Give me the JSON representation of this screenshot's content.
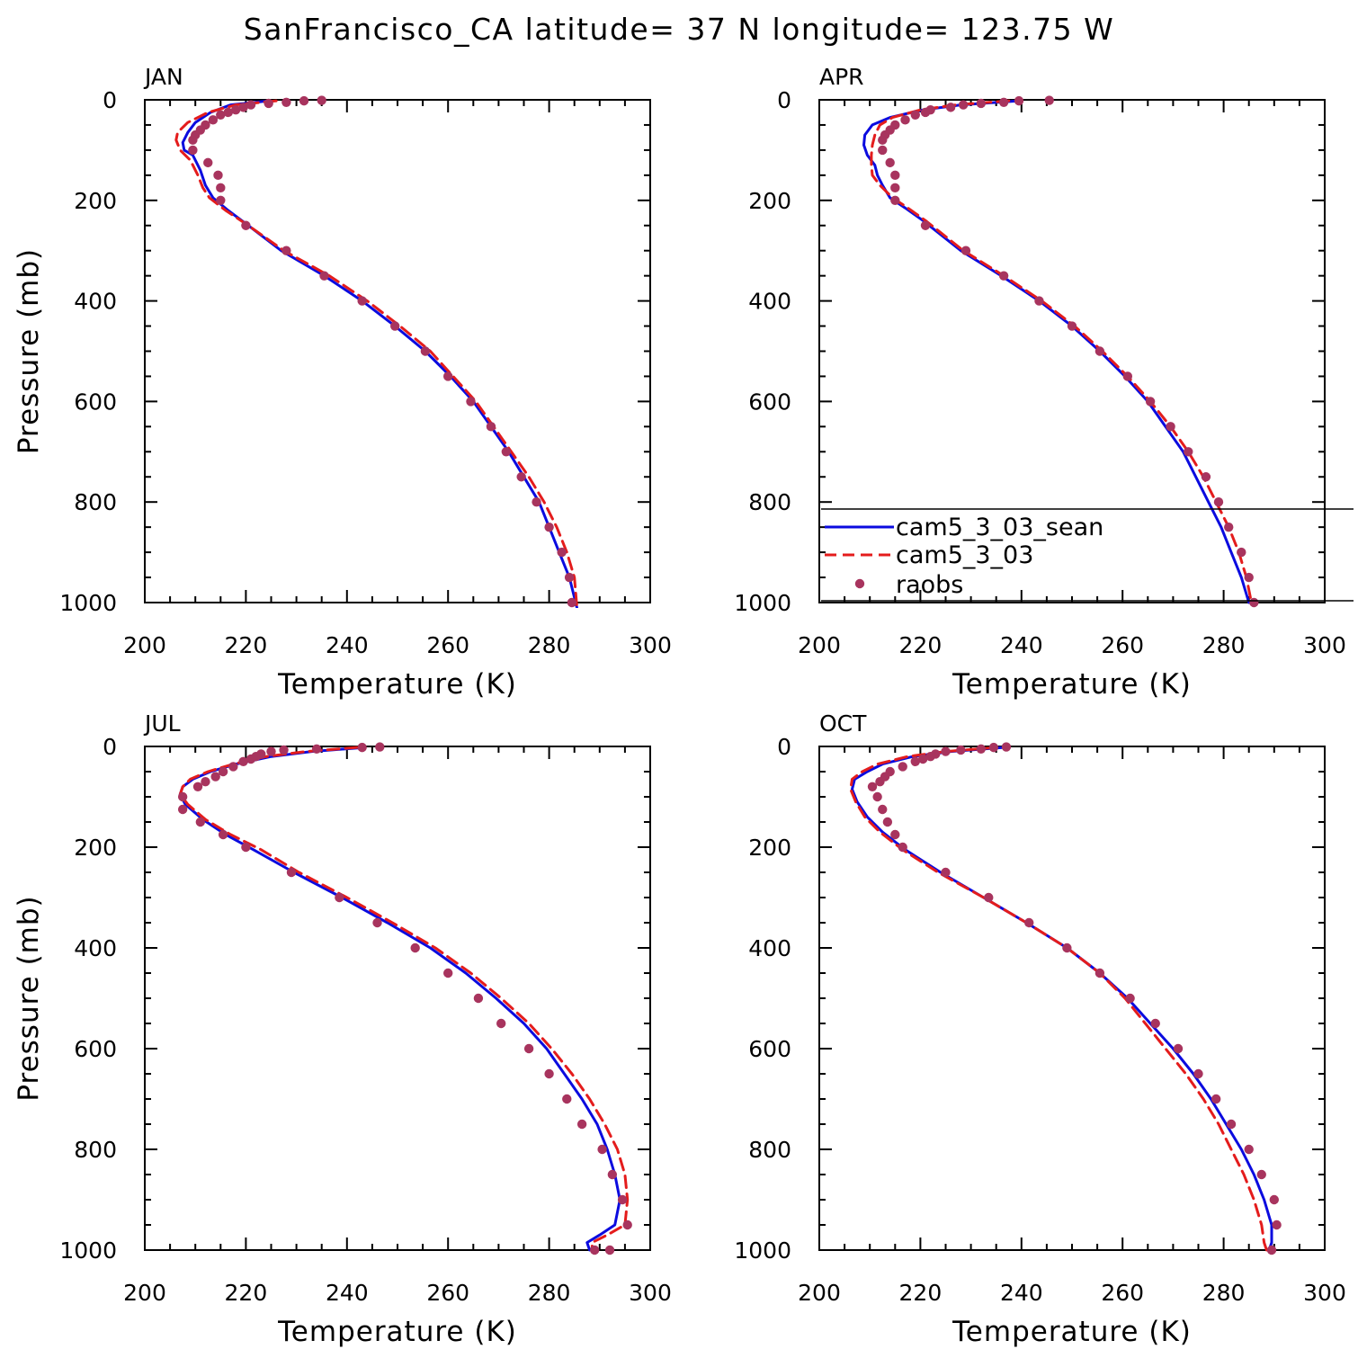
{
  "chart_data": {
    "type": "line",
    "title": "SanFrancisco_CA  latitude= 37 N longitude= 123.75 W",
    "colors": {
      "cam5_3_03_sean": "#0b0bdf",
      "cam5_3_03": "#e41c1c",
      "raobs": "#a8345e"
    },
    "legend": {
      "placement": "inside APR panel, bottom",
      "entries": [
        "cam5_3_03_sean",
        "cam5_3_03",
        "raobs"
      ]
    },
    "panels": [
      {
        "label": "JAN",
        "xlabel": "Temperature (K)",
        "ylabel": "Pressure (mb)",
        "xlim": [
          200,
          300
        ],
        "ylim": [
          1000,
          0
        ],
        "xticks": [
          "200",
          "220",
          "240",
          "260",
          "280",
          "300"
        ],
        "yticks": [
          "0",
          "200",
          "400",
          "600",
          "800",
          "1000"
        ],
        "series": [
          {
            "name": "cam5_3_03_sean",
            "style": "solid",
            "temperature": [
              224.5,
              217,
              213,
              210,
              208.5,
              207.5,
              207.8,
              209.5,
              211,
              212,
              213.5,
              216.5,
              220.5,
              227,
              235.5,
              243,
              249.5,
              255.5,
              260.5,
              265,
              268.5,
              272,
              275,
              278,
              280,
              282,
              284,
              285.5
            ],
            "pressure": [
              2,
              10,
              25,
              45,
              65,
              85,
              100,
              110,
              140,
              170,
              195,
              220,
              250,
              300,
              350,
              400,
              450,
              500,
              550,
              600,
              650,
              700,
              750,
              800,
              850,
              900,
              950,
              1010
            ]
          },
          {
            "name": "cam5_3_03",
            "style": "dashed",
            "temperature": [
              226,
              218,
              212.5,
              208.5,
              206.5,
              206.2,
              207,
              209,
              210.5,
              211.5,
              212.8,
              216,
              220.5,
              227.5,
              236.5,
              244,
              250.5,
              256.5,
              261,
              265.5,
              269,
              272.5,
              276,
              279,
              281.5,
              283.5,
              285,
              285.5
            ],
            "pressure": [
              2,
              10,
              25,
              45,
              65,
              80,
              100,
              120,
              150,
              175,
              195,
              220,
              250,
              300,
              350,
              400,
              450,
              500,
              550,
              600,
              650,
              700,
              750,
              800,
              850,
              900,
              950,
              1010
            ]
          },
          {
            "name": "raobs",
            "style": "dots",
            "temperature": [
              235,
              231.5,
              228,
              224.5,
              221,
              219.5,
              218,
              216.5,
              215,
              213.5,
              212,
              211,
              210,
              209.5,
              209.5,
              212.5,
              214.5,
              215,
              215,
              220,
              228,
              235.5,
              243,
              249.5,
              255.5,
              260,
              264.5,
              268.5,
              271.5,
              274.5,
              277.5,
              280,
              282.5,
              284,
              284.5
            ],
            "pressure": [
              1,
              2,
              5,
              7,
              10,
              15,
              20,
              25,
              30,
              40,
              50,
              60,
              70,
              80,
              100,
              125,
              150,
              175,
              200,
              250,
              300,
              350,
              400,
              450,
              500,
              550,
              600,
              650,
              700,
              750,
              800,
              850,
              900,
              950,
              1000
            ]
          }
        ]
      },
      {
        "label": "APR",
        "xlabel": "Temperature (K)",
        "ylabel": "",
        "xlim": [
          200,
          300
        ],
        "ylim": [
          1000,
          0
        ],
        "xticks": [
          "200",
          "220",
          "240",
          "260",
          "280",
          "300"
        ],
        "yticks": [
          "0",
          "200",
          "400",
          "600",
          "800",
          "1000"
        ],
        "series": [
          {
            "name": "cam5_3_03_sean",
            "style": "solid",
            "temperature": [
              239.5,
              228,
              220.5,
              214,
              210.5,
              209,
              208.8,
              209.5,
              211,
              211.5,
              212.5,
              214,
              217,
              220.5,
              228,
              236,
              243.5,
              250,
              255.5,
              260.5,
              265,
              268.5,
              272,
              274.5,
              277,
              279.5,
              281.5,
              283.5,
              285
            ],
            "pressure": [
              2,
              10,
              20,
              35,
              50,
              70,
              90,
              110,
              130,
              150,
              170,
              195,
              215,
              240,
              300,
              350,
              400,
              450,
              500,
              550,
              600,
              650,
              700,
              750,
              800,
              850,
              900,
              950,
              1000
            ]
          },
          {
            "name": "cam5_3_03",
            "style": "dashed",
            "temperature": [
              237.5,
              227,
              220,
              214.5,
              212,
              211,
              210.5,
              210.3,
              210.3,
              210.5,
              212,
              214.5,
              217.5,
              221,
              228.5,
              236.5,
              244,
              250.5,
              256,
              261,
              265.5,
              269.5,
              273,
              276,
              278.5,
              281,
              283,
              284.5,
              285.5
            ],
            "pressure": [
              2,
              10,
              20,
              35,
              50,
              70,
              90,
              110,
              130,
              150,
              170,
              195,
              215,
              240,
              300,
              350,
              400,
              450,
              500,
              550,
              600,
              650,
              700,
              750,
              800,
              850,
              900,
              950,
              1000
            ]
          },
          {
            "name": "raobs",
            "style": "dots",
            "temperature": [
              245.5,
              239.5,
              236.5,
              232,
              228.5,
              226,
              222,
              221,
              219,
              217,
              215,
              214,
              213,
              212.5,
              212.5,
              214,
              215,
              215,
              215,
              221,
              229,
              236.5,
              243.5,
              250,
              255.5,
              261,
              265.5,
              269.5,
              273,
              276.5,
              279,
              281,
              283.5,
              285,
              286
            ],
            "pressure": [
              1,
              2,
              5,
              7,
              10,
              15,
              20,
              25,
              30,
              40,
              50,
              60,
              70,
              80,
              100,
              125,
              150,
              175,
              200,
              250,
              300,
              350,
              400,
              450,
              500,
              550,
              600,
              650,
              700,
              750,
              800,
              850,
              900,
              950,
              1000
            ]
          }
        ]
      },
      {
        "label": "JUL",
        "xlabel": "Temperature (K)",
        "ylabel": "Pressure (mb)",
        "xlim": [
          200,
          300
        ],
        "ylim": [
          1000,
          0
        ],
        "xticks": [
          "200",
          "220",
          "240",
          "260",
          "280",
          "300"
        ],
        "yticks": [
          "0",
          "200",
          "400",
          "600",
          "800",
          "1000"
        ],
        "series": [
          {
            "name": "cam5_3_03_sean",
            "style": "solid",
            "temperature": [
              243.5,
              233,
              225,
              218,
              213,
              209.5,
              207.5,
              207,
              208,
              211.5,
              216,
              221.5,
              229.5,
              239,
              248,
              256.5,
              263.5,
              269.5,
              275,
              279.5,
              283,
              286.5,
              289.5,
              291.5,
              293,
              294,
              293,
              290,
              287.5,
              288
            ],
            "pressure": [
              2,
              10,
              20,
              35,
              50,
              65,
              80,
              95,
              115,
              145,
              175,
              205,
              250,
              300,
              350,
              400,
              450,
              500,
              550,
              600,
              650,
              700,
              750,
              800,
              850,
              900,
              950,
              970,
              985,
              1000
            ]
          },
          {
            "name": "cam5_3_03",
            "style": "dashed",
            "temperature": [
              242,
              232,
              224,
              217.5,
              212.5,
              209,
              207.5,
              207,
              208.5,
              212,
              217,
              223,
              230.5,
              240,
              249,
              257.5,
              264.5,
              270.5,
              276,
              280.5,
              284.5,
              288,
              291,
              293.5,
              295,
              295.5,
              295,
              291.5,
              288.5,
              288.5
            ],
            "pressure": [
              2,
              10,
              20,
              35,
              50,
              65,
              80,
              95,
              115,
              145,
              175,
              205,
              250,
              300,
              350,
              400,
              450,
              500,
              550,
              600,
              650,
              700,
              750,
              800,
              850,
              900,
              950,
              970,
              985,
              1000
            ]
          },
          {
            "name": "raobs",
            "style": "dots",
            "temperature": [
              246.5,
              243,
              234,
              227.5,
              225,
              223,
              222,
              221,
              219.5,
              217.5,
              215.5,
              214,
              212,
              210.5,
              207.5,
              207.5,
              211,
              215.5,
              220,
              229,
              238.5,
              246,
              253.5,
              260,
              266,
              270.5,
              276,
              280,
              283.5,
              286.5,
              290.5,
              292.5,
              294.5,
              295.5,
              292,
              289
            ],
            "pressure": [
              1,
              2,
              5,
              7,
              10,
              15,
              20,
              25,
              30,
              40,
              50,
              60,
              70,
              80,
              100,
              125,
              150,
              175,
              200,
              250,
              300,
              350,
              400,
              450,
              500,
              550,
              600,
              650,
              700,
              750,
              800,
              850,
              900,
              950,
              1000,
              1000
            ]
          }
        ]
      },
      {
        "label": "OCT",
        "xlabel": "Temperature (K)",
        "ylabel": "",
        "xlim": [
          200,
          300
        ],
        "ylim": [
          1000,
          0
        ],
        "xticks": [
          "200",
          "220",
          "240",
          "260",
          "280",
          "300"
        ],
        "yticks": [
          "0",
          "200",
          "400",
          "600",
          "800",
          "1000"
        ],
        "series": [
          {
            "name": "cam5_3_03_sean",
            "style": "solid",
            "temperature": [
              236.5,
              226,
              218.5,
              212.5,
              209.5,
              207,
              206.5,
              207.5,
              209.5,
              212.5,
              217,
              224,
              232.5,
              241,
              249,
              255.5,
              261,
              265.5,
              270,
              274,
              277.5,
              280.5,
              283.5,
              286,
              288,
              289.5,
              289.5,
              289
            ],
            "pressure": [
              2,
              10,
              20,
              35,
              50,
              65,
              85,
              110,
              140,
              170,
              205,
              250,
              300,
              350,
              400,
              450,
              500,
              550,
              600,
              650,
              700,
              750,
              800,
              850,
              900,
              950,
              985,
              1000
            ]
          },
          {
            "name": "cam5_3_03",
            "style": "dashed",
            "temperature": [
              235,
              225,
              217.5,
              211.5,
              208.5,
              206.5,
              206.2,
              207.2,
              209,
              212,
              216.5,
              223.5,
              232.5,
              241,
              249,
              255.5,
              260.5,
              264.5,
              268.5,
              272.5,
              276,
              279,
              281.5,
              284,
              286,
              287.5,
              288,
              288.5
            ],
            "pressure": [
              2,
              10,
              20,
              35,
              50,
              65,
              85,
              110,
              140,
              170,
              205,
              250,
              300,
              350,
              400,
              450,
              500,
              550,
              600,
              650,
              700,
              750,
              800,
              850,
              900,
              950,
              985,
              1000
            ]
          },
          {
            "name": "raobs",
            "style": "dots",
            "temperature": [
              237,
              234.5,
              232,
              228,
              225,
              223,
              222,
              220.5,
              219,
              216.5,
              214,
              213,
              212,
              210.5,
              211.5,
              212.5,
              213.5,
              215,
              216.5,
              225,
              233.5,
              241.5,
              249,
              255.5,
              261.5,
              266.5,
              271,
              275,
              278.5,
              281.5,
              285,
              287.5,
              290,
              290.5,
              289.5
            ],
            "pressure": [
              1,
              2,
              5,
              7,
              10,
              15,
              20,
              25,
              30,
              40,
              50,
              60,
              70,
              80,
              100,
              125,
              150,
              175,
              200,
              250,
              300,
              350,
              400,
              450,
              500,
              550,
              600,
              650,
              700,
              750,
              800,
              850,
              900,
              950,
              1000
            ]
          }
        ]
      }
    ]
  }
}
